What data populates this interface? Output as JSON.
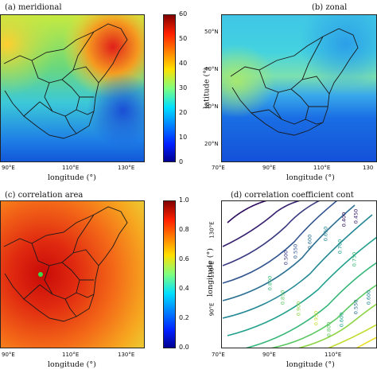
{
  "chart_data": [
    {
      "type": "heatmap",
      "title": "(a) meridional",
      "xlabel": "longitude (°)",
      "x_ticks": [
        "90°E",
        "110°E",
        "130°E"
      ],
      "colorbar": {
        "ticks": [
          "0",
          "10",
          "20",
          "30",
          "40",
          "50",
          "60"
        ],
        "range": [
          0,
          60
        ]
      }
    },
    {
      "type": "heatmap",
      "title": "(b) zonal",
      "xlabel": "longitude (°)",
      "ylabel": "latitude (°)",
      "x_ticks": [
        "70°E",
        "90°E",
        "110°E",
        "130"
      ],
      "y_ticks": [
        "20°N",
        "30°N",
        "40°N",
        "50°N"
      ]
    },
    {
      "type": "heatmap",
      "title": "(c) correlation area",
      "xlabel": "longitude (°)",
      "x_ticks": [
        "90°E",
        "110°E",
        "130°E"
      ],
      "colorbar": {
        "ticks": [
          "0.0",
          "0.2",
          "0.4",
          "0.6",
          "0.8",
          "1.0"
        ],
        "range": [
          0,
          1
        ]
      }
    },
    {
      "type": "line",
      "title": "(d) correlation coefficient cont",
      "xlabel": "longitude (°)",
      "ylabel": "longitude (°)",
      "x_ticks": [
        "70°E",
        "90°E",
        "110°E"
      ],
      "y_ticks": [
        "90°E",
        "110°E",
        "130°E"
      ],
      "contour_labels": [
        "0.400",
        "0.450",
        "0.500",
        "0.550",
        "0.600",
        "0.650",
        "0.700",
        "0.750",
        "0.800",
        "0.850",
        "0.900",
        "0.950",
        "0.800",
        "0.600",
        "0.550",
        "0.600"
      ]
    }
  ]
}
